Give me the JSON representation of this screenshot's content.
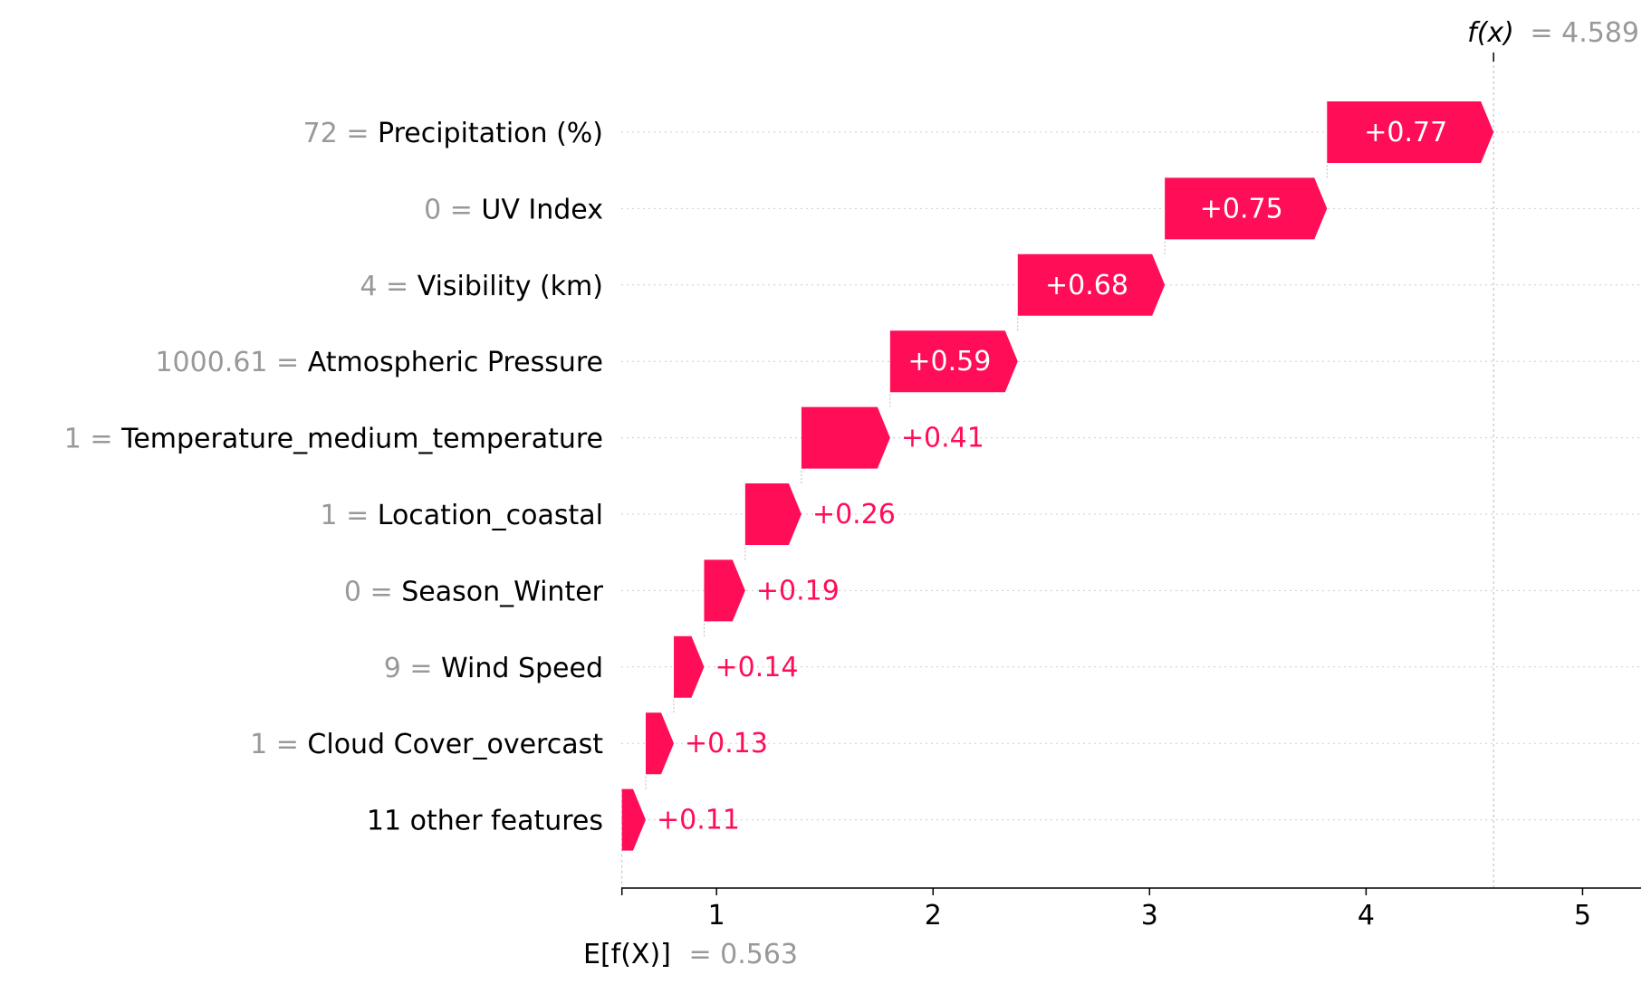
{
  "chart_data": {
    "type": "waterfall",
    "base_value": 0.563,
    "final_value": 4.589,
    "base_label": "E[f(X)]",
    "base_value_text": "= 0.563",
    "final_label": "f(x)",
    "final_value_text": "= 4.589",
    "xlim": [
      0.56,
      5.27
    ],
    "xticks": [
      1,
      2,
      3,
      4,
      5
    ],
    "grid": "horizontal dotted",
    "colors": {
      "positive": "#ff0d57",
      "feature_value": "#999999",
      "label": "#000000"
    },
    "features": [
      {
        "value": "72",
        "name": "Precipitation (%)",
        "shap": 0.77,
        "label": "+0.77"
      },
      {
        "value": "0",
        "name": "UV Index",
        "shap": 0.75,
        "label": "+0.75"
      },
      {
        "value": "4",
        "name": "Visibility (km)",
        "shap": 0.68,
        "label": "+0.68"
      },
      {
        "value": "1000.61",
        "name": "Atmospheric Pressure",
        "shap": 0.59,
        "label": "+0.59"
      },
      {
        "value": "1",
        "name": "Temperature_medium_temperature",
        "shap": 0.41,
        "label": "+0.41"
      },
      {
        "value": "1",
        "name": "Location_coastal",
        "shap": 0.26,
        "label": "+0.26"
      },
      {
        "value": "0",
        "name": "Season_Winter",
        "shap": 0.19,
        "label": "+0.19"
      },
      {
        "value": "9",
        "name": "Wind Speed",
        "shap": 0.14,
        "label": "+0.14"
      },
      {
        "value": "1",
        "name": "Cloud Cover_overcast",
        "shap": 0.13,
        "label": "+0.13"
      },
      {
        "value": "",
        "name": "11 other features",
        "shap": 0.11,
        "label": "+0.11"
      }
    ]
  }
}
